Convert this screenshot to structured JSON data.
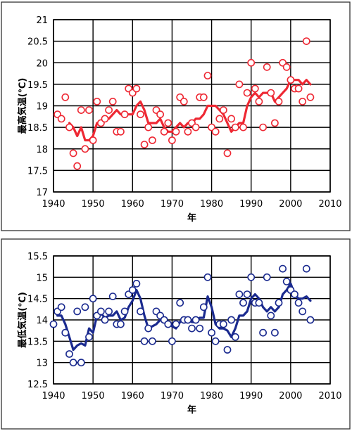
{
  "chart_data": [
    {
      "type": "line",
      "title": "",
      "xlabel": "年",
      "ylabel": "最高気温(℃)",
      "xlim": [
        1940,
        2010
      ],
      "ylim": [
        17,
        21
      ],
      "xticks": [
        "1940",
        "1950",
        "1960",
        "1970",
        "1980",
        "1990",
        "2000",
        "2010"
      ],
      "yticks": [
        "17",
        "17.5",
        "18",
        "18.5",
        "19",
        "19.5",
        "20",
        "20.5",
        "21"
      ],
      "grid": true,
      "color": "#ee2833",
      "series": [
        {
          "kind": "scatter-open-circle",
          "x": [
            1941,
            1942,
            1943,
            1944,
            1945,
            1946,
            1947,
            1948,
            1949,
            1950,
            1951,
            1952,
            1953,
            1954,
            1955,
            1956,
            1957,
            1958,
            1959,
            1960,
            1961,
            1962,
            1963,
            1964,
            1965,
            1966,
            1967,
            1968,
            1969,
            1970,
            1971,
            1972,
            1973,
            1974,
            1975,
            1976,
            1977,
            1978,
            1979,
            1980,
            1981,
            1982,
            1983,
            1984,
            1985,
            1986,
            1987,
            1988,
            1989,
            1990,
            1991,
            1992,
            1993,
            1994,
            1995,
            1996,
            1997,
            1998,
            1999,
            2000,
            2001,
            2002,
            2003,
            2004,
            2005
          ],
          "y": [
            18.8,
            18.7,
            19.2,
            18.5,
            17.9,
            17.6,
            18.9,
            18.0,
            18.9,
            18.2,
            19.1,
            18.6,
            18.7,
            18.9,
            19.1,
            18.4,
            18.4,
            18.8,
            19.4,
            19.3,
            19.4,
            18.8,
            18.1,
            18.5,
            18.2,
            18.9,
            18.8,
            18.4,
            18.6,
            18.2,
            18.4,
            19.2,
            19.1,
            18.4,
            18.6,
            18.5,
            19.2,
            19.2,
            19.7,
            18.5,
            18.4,
            18.7,
            18.9,
            17.9,
            18.7,
            18.5,
            19.5,
            18.5,
            19.3,
            20.0,
            19.4,
            19.1,
            18.5,
            19.9,
            19.3,
            18.6,
            19.1,
            20.0,
            19.9,
            19.6,
            19.4,
            19.4,
            19.1,
            20.5,
            19.2
          ]
        },
        {
          "kind": "moving-average-line",
          "x": [
            1944,
            1945,
            1946,
            1947,
            1948,
            1949,
            1950,
            1951,
            1952,
            1953,
            1954,
            1955,
            1956,
            1957,
            1958,
            1959,
            1960,
            1961,
            1962,
            1963,
            1964,
            1965,
            1966,
            1967,
            1968,
            1969,
            1970,
            1971,
            1972,
            1973,
            1974,
            1975,
            1976,
            1977,
            1978,
            1979,
            1980,
            1981,
            1982,
            1983,
            1984,
            1985,
            1986,
            1987,
            1988,
            1989,
            1990,
            1991,
            1992,
            1993,
            1994,
            1995,
            1996,
            1997,
            1998,
            1999,
            2000,
            2001,
            2002,
            2003,
            2004,
            2005
          ],
          "y": [
            18.6,
            18.5,
            18.3,
            18.5,
            18.2,
            18.2,
            18.3,
            18.6,
            18.6,
            18.7,
            18.7,
            18.8,
            18.9,
            18.8,
            18.8,
            18.8,
            18.8,
            19.0,
            19.1,
            18.9,
            18.6,
            18.6,
            18.6,
            18.7,
            18.5,
            18.4,
            18.4,
            18.5,
            18.6,
            18.5,
            18.6,
            18.6,
            18.7,
            18.7,
            18.8,
            19.0,
            19.0,
            19.0,
            18.9,
            18.8,
            18.6,
            18.4,
            18.5,
            18.6,
            18.6,
            19.0,
            19.2,
            19.3,
            19.2,
            19.3,
            19.3,
            19.3,
            19.1,
            19.2,
            19.3,
            19.4,
            19.6,
            19.6,
            19.6,
            19.5,
            19.6,
            19.5
          ]
        }
      ]
    },
    {
      "type": "line",
      "title": "",
      "xlabel": "年",
      "ylabel": "最低気温(℃)",
      "xlim": [
        1940,
        2010
      ],
      "ylim": [
        12.5,
        15.5
      ],
      "xticks": [
        "1940",
        "1950",
        "1960",
        "1970",
        "1980",
        "1990",
        "2000",
        "2010"
      ],
      "yticks": [
        "12.5",
        "13",
        "13.5",
        "14",
        "14.5",
        "15",
        "15.5"
      ],
      "grid": true,
      "color": "#1a2a8f",
      "series": [
        {
          "kind": "scatter-open-circle",
          "x": [
            1940,
            1941,
            1942,
            1943,
            1944,
            1945,
            1946,
            1947,
            1948,
            1949,
            1950,
            1951,
            1952,
            1953,
            1954,
            1955,
            1956,
            1957,
            1958,
            1959,
            1960,
            1961,
            1962,
            1963,
            1964,
            1965,
            1966,
            1967,
            1968,
            1969,
            1970,
            1971,
            1972,
            1973,
            1974,
            1975,
            1976,
            1977,
            1978,
            1979,
            1980,
            1981,
            1982,
            1983,
            1984,
            1985,
            1986,
            1987,
            1988,
            1989,
            1990,
            1991,
            1992,
            1993,
            1994,
            1995,
            1996,
            1997,
            1998,
            1999,
            2000,
            2001,
            2002,
            2003,
            2004,
            2005
          ],
          "y": [
            13.9,
            14.2,
            14.3,
            13.7,
            13.2,
            13.0,
            14.2,
            13.0,
            14.3,
            13.6,
            14.5,
            14.1,
            14.2,
            14.0,
            14.2,
            14.55,
            13.9,
            13.9,
            14.2,
            14.6,
            14.7,
            14.85,
            14.2,
            13.5,
            13.8,
            13.5,
            14.2,
            14.1,
            14.0,
            13.9,
            13.5,
            13.9,
            14.4,
            14.0,
            14.0,
            13.8,
            14.0,
            13.8,
            14.3,
            15.0,
            13.7,
            13.5,
            13.9,
            13.9,
            13.3,
            14.0,
            13.6,
            14.6,
            14.4,
            14.6,
            15.0,
            14.4,
            14.4,
            13.7,
            15.0,
            14.1,
            13.7,
            14.4,
            15.2,
            14.9,
            14.7,
            14.6,
            14.4,
            14.2,
            15.2,
            14.0
          ]
        },
        {
          "kind": "moving-average-line",
          "x": [
            1941,
            1942,
            1943,
            1944,
            1945,
            1946,
            1947,
            1948,
            1949,
            1950,
            1951,
            1952,
            1953,
            1954,
            1955,
            1956,
            1957,
            1958,
            1959,
            1960,
            1961,
            1962,
            1963,
            1964,
            1965,
            1966,
            1967,
            1968,
            1969,
            1970,
            1971,
            1972,
            1973,
            1974,
            1975,
            1976,
            1977,
            1978,
            1979,
            1980,
            1981,
            1982,
            1983,
            1984,
            1985,
            1986,
            1987,
            1988,
            1989,
            1990,
            1991,
            1992,
            1993,
            1994,
            1995,
            1996,
            1997,
            1998,
            1999,
            2000,
            2001,
            2002,
            2003,
            2004,
            2005
          ],
          "y": [
            14.1,
            14.1,
            13.9,
            13.6,
            13.3,
            13.4,
            13.45,
            13.4,
            13.8,
            13.7,
            14.1,
            14.15,
            14.05,
            14.1,
            14.1,
            14.2,
            14.0,
            14.05,
            14.3,
            14.45,
            14.7,
            14.5,
            14.1,
            13.8,
            13.85,
            13.9,
            14.0,
            14.0,
            13.95,
            13.85,
            13.8,
            13.95,
            14.05,
            14.05,
            13.95,
            13.95,
            14.05,
            14.05,
            14.55,
            14.3,
            13.9,
            13.8,
            13.8,
            13.75,
            13.6,
            13.8,
            14.1,
            14.1,
            14.2,
            14.5,
            14.6,
            14.5,
            14.3,
            14.2,
            14.3,
            14.2,
            14.3,
            14.6,
            14.7,
            14.85,
            14.6,
            14.5,
            14.5,
            14.55,
            14.45
          ]
        }
      ]
    }
  ]
}
